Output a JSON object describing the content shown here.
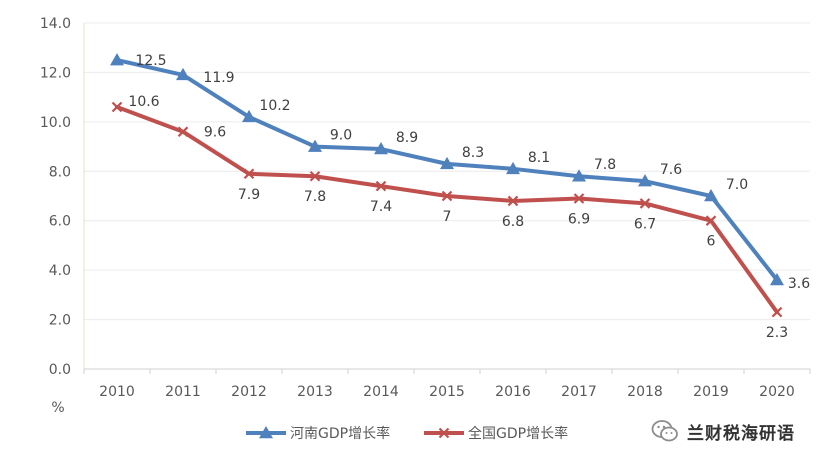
{
  "chart_data": {
    "type": "line",
    "categories": [
      "2010",
      "2011",
      "2012",
      "2013",
      "2014",
      "2015",
      "2016",
      "2017",
      "2018",
      "2019",
      "2020"
    ],
    "series": [
      {
        "name": "河南GDP增长率",
        "values": [
          12.5,
          11.9,
          10.2,
          9.0,
          8.9,
          8.3,
          8.1,
          7.8,
          7.6,
          7.0,
          3.6
        ],
        "labels": [
          "12.5",
          "11.9",
          "10.2",
          "9.0",
          "8.9",
          "8.3",
          "8.1",
          "7.8",
          "7.6",
          "7.0",
          "3.6"
        ],
        "color": "#4f81bd",
        "marker": "triangle"
      },
      {
        "name": "全国GDP增长率",
        "values": [
          10.6,
          9.6,
          7.9,
          7.8,
          7.4,
          7,
          6.8,
          6.9,
          6.7,
          6,
          2.3
        ],
        "labels": [
          "10.6",
          "9.6",
          "7.9",
          "7.8",
          "7.4",
          "7",
          "6.8",
          "6.9",
          "6.7",
          "6",
          "2.3"
        ],
        "color": "#c0504d",
        "marker": "x"
      }
    ],
    "yticks": [
      "0.0",
      "2.0",
      "4.0",
      "6.0",
      "8.0",
      "10.0",
      "12.0",
      "14.0"
    ],
    "ylim": [
      0,
      14
    ],
    "yunit": "%",
    "grid": true,
    "legend": "bottom"
  },
  "watermark": {
    "text": "兰财税海研语",
    "icon": "wechat-icon"
  }
}
